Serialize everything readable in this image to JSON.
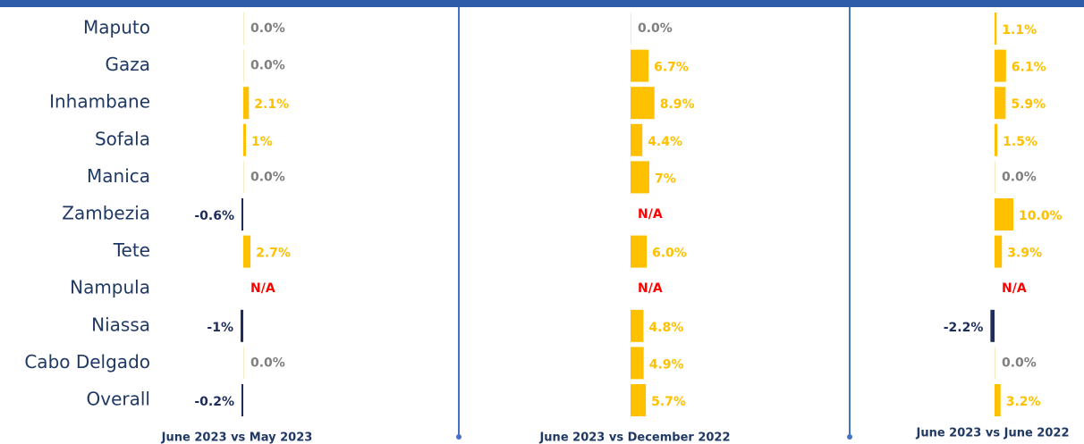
{
  "chart_data": {
    "type": "bar",
    "categories": [
      "Maputo",
      "Gaza",
      "Inhambane",
      "Sofala",
      "Manica",
      "Zambezia",
      "Tete",
      "Nampula",
      "Niassa",
      "Cabo Delgado",
      "Overall"
    ],
    "color": "#FFC000",
    "negative_color": "#1F2D5C",
    "zero_color": "#7F7F7F",
    "na_color": "#FF0000",
    "series": [
      {
        "name": "June 2023 vs May 2023",
        "values": [
          0.0,
          0.0,
          2.1,
          1,
          0.0,
          -0.6,
          2.7,
          null,
          -1,
          0.0,
          -0.2
        ],
        "value_labels": [
          "0.0%",
          "0.0%",
          "2.1%",
          "1%",
          "0.0%",
          "-0.6%",
          "2.7%",
          "N/A",
          "-1%",
          "0.0%",
          "-0.2%"
        ]
      },
      {
        "name": "June 2023 vs December 2022",
        "values": [
          0.0,
          6.7,
          8.9,
          4.4,
          7,
          null,
          6.0,
          null,
          4.8,
          4.9,
          5.7
        ],
        "value_labels": [
          "0.0%",
          "6.7%",
          "8.9%",
          "4.4%",
          "7%",
          "N/A",
          "6.0%",
          "N/A",
          "4.8%",
          "4.9%",
          "5.7%"
        ]
      },
      {
        "name": "June 2023 vs June 2022",
        "values": [
          1.1,
          6.1,
          5.9,
          1.5,
          0.0,
          10.0,
          3.9,
          null,
          -2.2,
          0.0,
          3.2
        ],
        "value_labels": [
          "1.1%",
          "6.1%",
          "5.9%",
          "1.5%",
          "0.0%",
          "10.0%",
          "3.9%",
          "N/A",
          "-2.2%",
          "0.0%",
          "3.2%"
        ]
      }
    ]
  }
}
